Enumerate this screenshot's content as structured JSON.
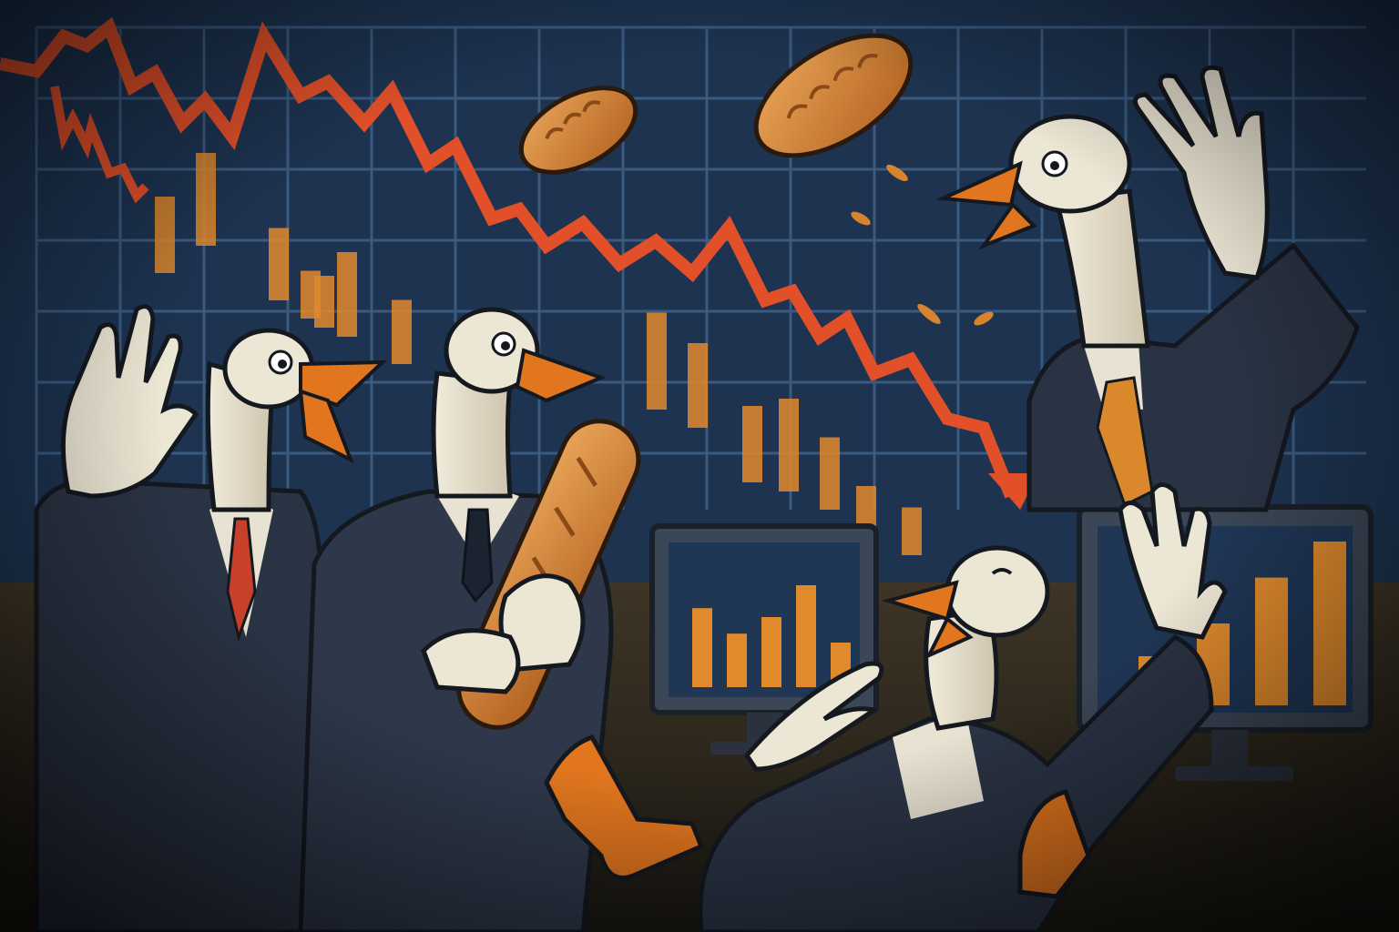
{
  "scene": {
    "subject": "geese-traders-panic",
    "colors": {
      "board_bg": "#1d3350",
      "grid": "#3a5a80",
      "trend_line": "#e2502a",
      "bar": "#e08a2c",
      "suit": "#2a3344",
      "suit_shadow": "#1c2330",
      "goose": "#ece6d4",
      "goose_shade": "#cfc7b0",
      "beak": "#e2761f",
      "bread": "#cf7d2e",
      "bread_light": "#e8a85a",
      "tie_red": "#c8402a",
      "tie_orange": "#d9892c",
      "floor": "#3a2f22",
      "monitor_frame": "#3b4656"
    },
    "monitor_left": {
      "bars": [
        0.62,
        0.42,
        0.55,
        0.8,
        0.35
      ]
    },
    "monitor_right": {
      "bars": [
        0.3,
        0.5,
        0.78,
        1.0
      ]
    },
    "board_bars": [
      0.6,
      0.8,
      0.55,
      0.7,
      0.45,
      0.3,
      0.25,
      0.85,
      0.7,
      0.6,
      0.8,
      0.55,
      0.4,
      0.25
    ]
  }
}
